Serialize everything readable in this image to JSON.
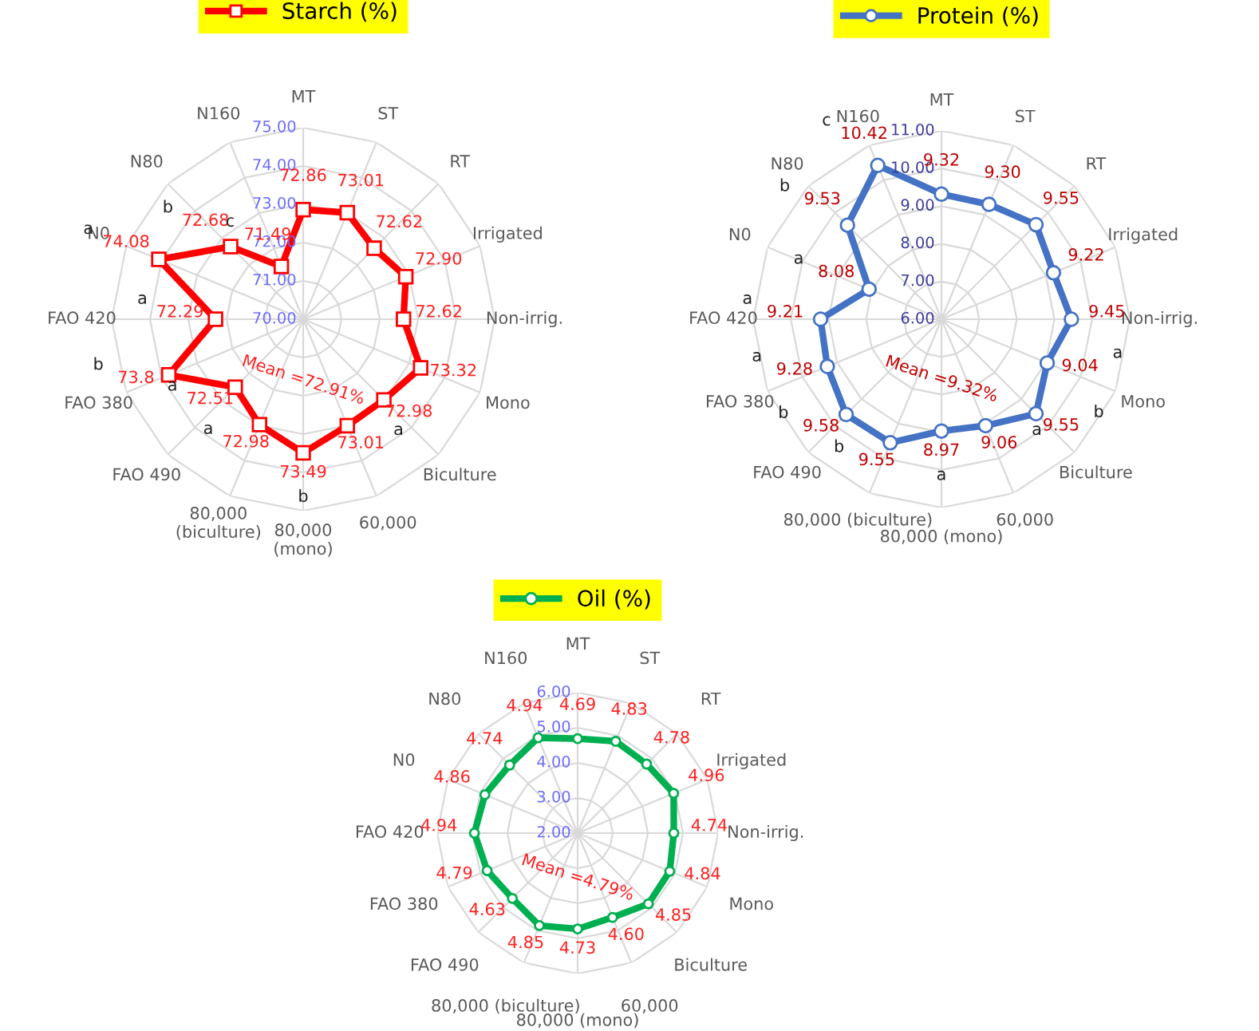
{
  "chart_data": [
    {
      "type": "radar",
      "categories": [
        "MT",
        "ST",
        "RT",
        "Irrigated",
        "Non-irrig.",
        "Mono",
        "Biculture",
        "60,000",
        "80,000\n(mono)",
        "80,000\n(biculture)",
        "FAO 490",
        "FAO 380",
        "FAO 420",
        "N0",
        "N80",
        "N160"
      ],
      "series": [
        {
          "name": "Starch (%)",
          "color": "#ff0000",
          "values": [
            72.86,
            73.01,
            72.62,
            72.9,
            72.62,
            73.32,
            72.98,
            73.01,
            73.49,
            72.98,
            72.51,
            73.8,
            72.29,
            74.08,
            72.68,
            71.49
          ],
          "value_labels": [
            "72.86",
            "73.01",
            "72.62",
            "72.90",
            "72.62",
            "73.32",
            "72.98",
            "73.01",
            "73.49",
            "72.98",
            "72.51",
            "73.8",
            "72.29",
            "74.08",
            "72.68",
            "71.49"
          ]
        }
      ],
      "ylim": [
        70,
        75
      ],
      "yticks": [
        {
          "value": 70,
          "label": "70.00"
        },
        {
          "value": 71,
          "label": "71.00"
        },
        {
          "value": 72,
          "label": "72.00"
        },
        {
          "value": 73,
          "label": "73.00"
        },
        {
          "value": 74,
          "label": "74.00"
        },
        {
          "value": 75,
          "label": "75.00"
        }
      ],
      "marker": "square",
      "legend": "top",
      "grid": true,
      "annotations": [
        "Mean =72.91%",
        {
          "text": "a",
          "x": "60,000"
        },
        {
          "text": "c",
          "x": "N160"
        },
        {
          "text": "b",
          "x": "N80"
        },
        {
          "text": "a",
          "x": "N0"
        },
        {
          "text": "a",
          "x": "FAO 420"
        },
        {
          "text": "b",
          "x": "FAO 380"
        },
        {
          "text": "a",
          "x": "FAO 490"
        },
        {
          "text": "a",
          "x": "80,000\n(biculture)"
        },
        {
          "text": "b",
          "x": "80,000\n(mono)"
        }
      ]
    },
    {
      "type": "radar",
      "categories": [
        "MT",
        "ST",
        "RT",
        "Irrigated",
        "Non-irrig.",
        "Mono",
        "Biculture",
        "60,000",
        "80,000 (mono)",
        "80,000 (biculture)",
        "FAO 490",
        "FAO 380",
        "FAO 420",
        "N0",
        "N80",
        "N160"
      ],
      "series": [
        {
          "name": "Protein (%)",
          "color": "#4472c4",
          "values": [
            9.32,
            9.3,
            9.55,
            9.22,
            9.45,
            9.04,
            9.55,
            9.06,
            8.97,
            9.55,
            9.58,
            9.28,
            9.21,
            8.08,
            9.53,
            10.42
          ],
          "value_labels": [
            "9.32",
            "9.30",
            "9.55",
            "9.22",
            "9.45",
            "9.04",
            "9.55",
            "9.06",
            "8.97",
            "9.55",
            "9.58",
            "9.28",
            "9.21",
            "8.08",
            "9.53",
            "10.42"
          ]
        }
      ],
      "ylim": [
        6,
        11
      ],
      "yticks": [
        {
          "value": 6,
          "label": "6.00"
        },
        {
          "value": 7,
          "label": "7.00"
        },
        {
          "value": 8,
          "label": "8.00"
        },
        {
          "value": 9,
          "label": "9.00"
        },
        {
          "value": 10,
          "label": "10.00"
        },
        {
          "value": 11,
          "label": "11.00"
        }
      ],
      "marker": "circle",
      "legend": "top",
      "grid": true,
      "annotations": [
        "Mean =9.32%",
        {
          "text": "a",
          "x": "Mono"
        },
        {
          "text": "b",
          "x": "Biculture"
        },
        {
          "text": "a",
          "x": "60,000"
        },
        {
          "text": "a",
          "x": "80,000 (mono)"
        },
        {
          "text": "b",
          "x": "80,000 (biculture)"
        },
        {
          "text": "b",
          "x": "FAO 490"
        },
        {
          "text": "a",
          "x": "FAO 380"
        },
        {
          "text": "a",
          "x": "FAO 420"
        },
        {
          "text": "a",
          "x": "N0"
        },
        {
          "text": "b",
          "x": "N80"
        },
        {
          "text": "c",
          "x": "N160"
        }
      ]
    },
    {
      "type": "radar",
      "categories": [
        "MT",
        "ST",
        "RT",
        "Irrigated",
        "Non-irrig.",
        "Mono",
        "Biculture",
        "60,000",
        "80,000 (mono)",
        "80,000 (biculture)",
        "FAO 490",
        "FAO 380",
        "FAO 420",
        "N0",
        "N80",
        "N160"
      ],
      "series": [
        {
          "name": "Oil (%)",
          "color": "#00b050",
          "values": [
            4.69,
            4.83,
            4.78,
            4.96,
            4.74,
            4.84,
            4.85,
            4.6,
            4.73,
            4.85,
            4.63,
            4.79,
            4.94,
            4.86,
            4.74,
            4.94
          ],
          "value_labels": [
            "4.69",
            "4.83",
            "4.78",
            "4.96",
            "4.74",
            "4.84",
            "4.85",
            "4.60",
            "4.73",
            "4.85",
            "4.63",
            "4.79",
            "4.94",
            "4.86",
            "4.74",
            "4.94"
          ]
        }
      ],
      "ylim": [
        2,
        6
      ],
      "yticks": [
        {
          "value": 2,
          "label": "2.00"
        },
        {
          "value": 3,
          "label": "3.00"
        },
        {
          "value": 4,
          "label": "4.00"
        },
        {
          "value": 5,
          "label": "5.00"
        },
        {
          "value": 6,
          "label": "6.00"
        }
      ],
      "marker": "circle",
      "legend": "top",
      "grid": true,
      "annotations": [
        "Mean =4.79%"
      ]
    }
  ]
}
